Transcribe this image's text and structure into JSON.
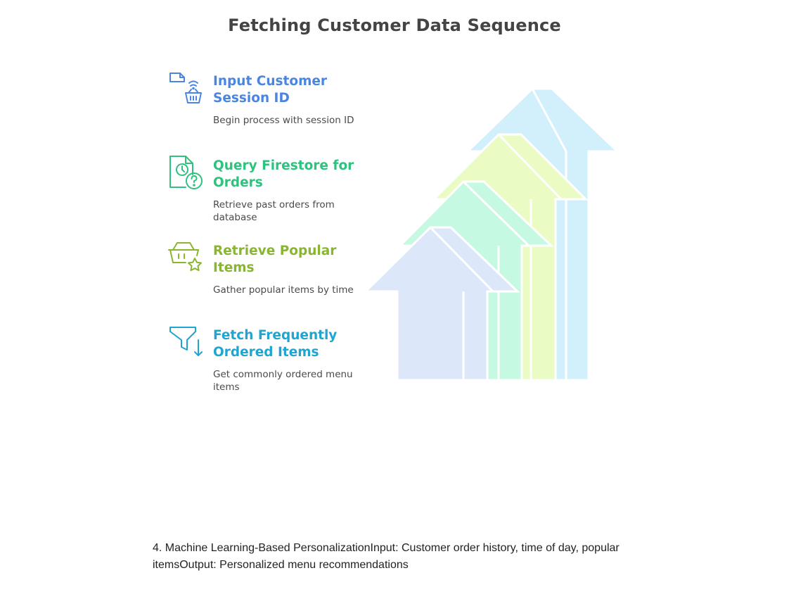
{
  "title": "Fetching Customer Data Sequence",
  "steps": [
    {
      "title": "Input Customer Session ID",
      "description": "Begin process with session ID",
      "icon": "session-basket-icon",
      "color": "#4a86e0"
    },
    {
      "title": "Query Firestore for Orders",
      "description": "Retrieve past orders from database",
      "icon": "document-clock-question-icon",
      "color": "#2ec27e"
    },
    {
      "title": "Retrieve Popular Items",
      "description": "Gather popular items by time",
      "icon": "basket-star-icon",
      "color": "#8ab531"
    },
    {
      "title": "Fetch Frequently Ordered Items",
      "description": "Get commonly ordered menu items",
      "icon": "funnel-arrow-icon",
      "color": "#1fa5d1"
    }
  ],
  "arrow_colors": [
    "#d2f0fb",
    "#eafcc4",
    "#c6f9e2",
    "#dce7fa"
  ],
  "footnote": "4. Machine Learning-Based PersonalizationInput: Customer order history, time of day, popular itemsOutput: Personalized menu recommendations"
}
